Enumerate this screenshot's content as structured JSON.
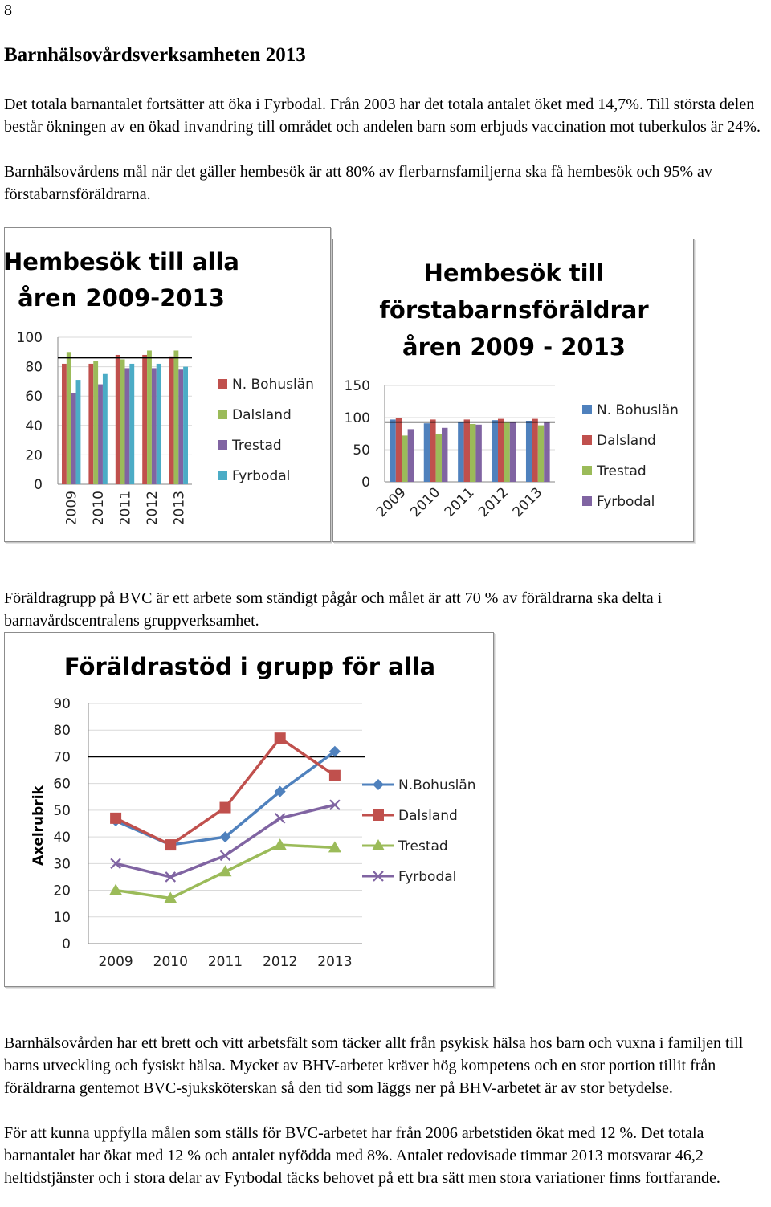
{
  "page_number": "8",
  "heading": "Barnhälsovårdsverksamheten 2013",
  "paragraphs": {
    "intro_1": "Det totala barnantalet fortsätter att öka i Fyrbodal. Från 2003 har det totala antalet öket med 14,7%. Till största delen består ökningen av en ökad invandring till området och andelen barn som erbjuds vaccination mot tuberkulos är 24%.",
    "intro_2": "Barnhälsovårdens mål när det gäller hembesök är att 80% av flerbarnsfamiljerna ska få hembesök och 95% av förstabarnsföräldrarna.",
    "group": "Föräldragrupp på BVC är ett arbete som ständigt pågår och målet är att 70 % av föräldrarna ska delta i barnavårdscentralens gruppverksamhet.",
    "closing_1": "Barnhälsovården har ett brett och vitt arbetsfält som täcker allt från psykisk hälsa hos barn och vuxna i familjen till barns utveckling och fysiskt hälsa. Mycket av BHV-arbetet kräver hög kompetens och en stor portion tillit från föräldrarna gentemot BVC-sjuksköterskan så den tid som läggs ner på BHV-arbetet är av stor betydelse.",
    "closing_2": "För att kunna uppfylla målen som ställs för BVC-arbetet har från 2006 arbetstiden ökat med 12 %. Det totala barnantalet har ökat med 12 % och antalet nyfödda med 8%. Antalet redovisade timmar 2013 motsvarar 46,2 heltidstjänster och i stora delar av Fyrbodal täcks behovet på ett bra sätt men stora variationer finns fortfarande."
  },
  "chart_data": [
    {
      "type": "bar",
      "title_lines": [
        "Hembesök till alla",
        "åren 2009-2013"
      ],
      "categories": [
        "2009",
        "2010",
        "2011",
        "2012",
        "2013"
      ],
      "series": [
        {
          "name": "N. Bohuslän",
          "color": "#c0504d",
          "values": [
            82,
            82,
            88,
            88,
            87
          ]
        },
        {
          "name": "Dalsland",
          "color": "#9bbb59",
          "values": [
            90,
            84,
            85,
            91,
            91
          ]
        },
        {
          "name": "Trestad",
          "color": "#8064a2",
          "values": [
            62,
            68,
            79,
            79,
            78
          ]
        },
        {
          "name": "Fyrbodal",
          "color": "#4bacc6",
          "values": [
            71,
            75,
            82,
            82,
            80
          ]
        }
      ],
      "yticks": [
        0,
        20,
        40,
        60,
        80,
        100
      ],
      "ylim": [
        0,
        100
      ],
      "target_line": 86,
      "legend_position": "right"
    },
    {
      "type": "bar",
      "title_lines": [
        "Hembesök till",
        "förstabarnsföräldrar",
        "åren 2009 - 2013"
      ],
      "categories": [
        "2009",
        "2010",
        "2011",
        "2012",
        "2013"
      ],
      "series": [
        {
          "name": "N. Bohuslän",
          "color": "#4f81bd",
          "values": [
            97,
            91,
            93,
            96,
            95
          ]
        },
        {
          "name": "Dalsland",
          "color": "#c0504d",
          "values": [
            99,
            97,
            97,
            98,
            98
          ]
        },
        {
          "name": "Trestad",
          "color": "#9bbb59",
          "values": [
            72,
            75,
            90,
            92,
            88
          ]
        },
        {
          "name": "Fyrbodal",
          "color": "#8064a2",
          "values": [
            82,
            84,
            89,
            93,
            92
          ]
        }
      ],
      "yticks": [
        0,
        50,
        100,
        150
      ],
      "ylim": [
        0,
        150
      ],
      "target_line": 93,
      "legend_position": "right"
    },
    {
      "type": "line",
      "title": "Föräldrastöd i grupp för alla",
      "ylabel": "Axelrubrik",
      "x": [
        "2009",
        "2010",
        "2011",
        "2012",
        "2013"
      ],
      "series": [
        {
          "name": "N.Bohuslän",
          "color": "#4f81bd",
          "marker": "diamond",
          "values": [
            46,
            37,
            40,
            57,
            72
          ]
        },
        {
          "name": "Dalsland",
          "color": "#c0504d",
          "marker": "square",
          "values": [
            47,
            37,
            51,
            77,
            63
          ]
        },
        {
          "name": "Trestad",
          "color": "#9bbb59",
          "marker": "triangle",
          "values": [
            20,
            17,
            27,
            37,
            36
          ]
        },
        {
          "name": "Fyrbodal",
          "color": "#8064a2",
          "marker": "x",
          "values": [
            30,
            25,
            33,
            47,
            52
          ]
        }
      ],
      "yticks": [
        0,
        10,
        20,
        30,
        40,
        50,
        60,
        70,
        80,
        90
      ],
      "ylim": [
        0,
        90
      ],
      "target_line": 70,
      "grid": true,
      "legend_position": "right"
    }
  ]
}
